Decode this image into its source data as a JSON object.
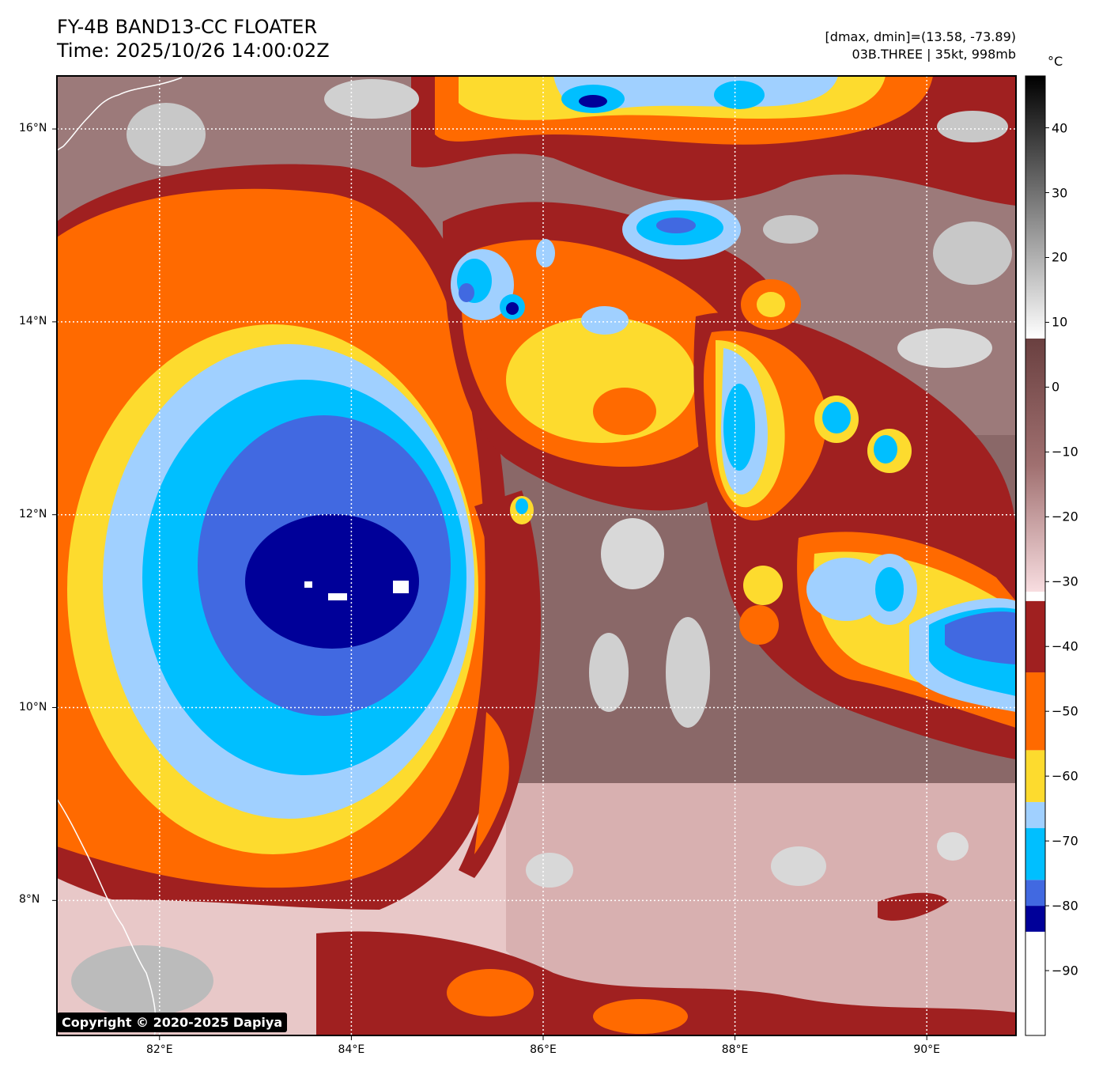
{
  "header": {
    "title_line1": "FY-4B BAND13-CC FLOATER",
    "title_line2": "Time: 2025/10/26 14:00:02Z",
    "stats_line": "[dmax, dmin]=(13.58, -73.89)",
    "storm_line": "03B.THREE | 35kt, 998mb"
  },
  "map": {
    "extent_lon": [
      80.93,
      90.93
    ],
    "extent_lat": [
      6.6,
      16.55
    ],
    "lat_ticks": [
      {
        "value": 8,
        "label": "8°N"
      },
      {
        "value": 10,
        "label": "10°N"
      },
      {
        "value": 12,
        "label": "12°N"
      },
      {
        "value": 14,
        "label": "14°N"
      },
      {
        "value": 16,
        "label": "16°N"
      }
    ],
    "lon_ticks": [
      {
        "value": 82,
        "label": "82°E"
      },
      {
        "value": 84,
        "label": "84°E"
      },
      {
        "value": 86,
        "label": "86°E"
      },
      {
        "value": 88,
        "label": "88°E"
      },
      {
        "value": 90,
        "label": "90°E"
      }
    ],
    "gridlines": true,
    "storm_center": {
      "lon": 84.1,
      "lat": 11.2
    },
    "coldest_cloud_top_c": -73.89
  },
  "colorbar": {
    "unit": "°C",
    "range": [
      -100,
      48
    ],
    "ticks": [
      {
        "value": 40,
        "label": "40"
      },
      {
        "value": 30,
        "label": "30"
      },
      {
        "value": 20,
        "label": "20"
      },
      {
        "value": 10,
        "label": "10"
      },
      {
        "value": 0,
        "label": "0"
      },
      {
        "value": -10,
        "label": "−10"
      },
      {
        "value": -20,
        "label": "−20"
      },
      {
        "value": -30,
        "label": "−30"
      },
      {
        "value": -40,
        "label": "−40"
      },
      {
        "value": -50,
        "label": "−50"
      },
      {
        "value": -60,
        "label": "−60"
      },
      {
        "value": -70,
        "label": "−70"
      },
      {
        "value": -80,
        "label": "−80"
      },
      {
        "value": -90,
        "label": "−90"
      }
    ],
    "bands": [
      {
        "from": -100,
        "to": -84,
        "color": "#ffffff"
      },
      {
        "from": -84,
        "to": -80,
        "color": "#000099"
      },
      {
        "from": -80,
        "to": -76,
        "color": "#4169e1"
      },
      {
        "from": -76,
        "to": -68,
        "color": "#00bfff"
      },
      {
        "from": -68,
        "to": -64,
        "color": "#a0d0ff"
      },
      {
        "from": -64,
        "to": -56,
        "color": "#fddb2e"
      },
      {
        "from": -56,
        "to": -44,
        "color": "#ff6a00"
      },
      {
        "from": -44,
        "to": -33,
        "color": "#a02020"
      }
    ]
  },
  "copyright": "Copyright © 2020-2025 Dapiya"
}
